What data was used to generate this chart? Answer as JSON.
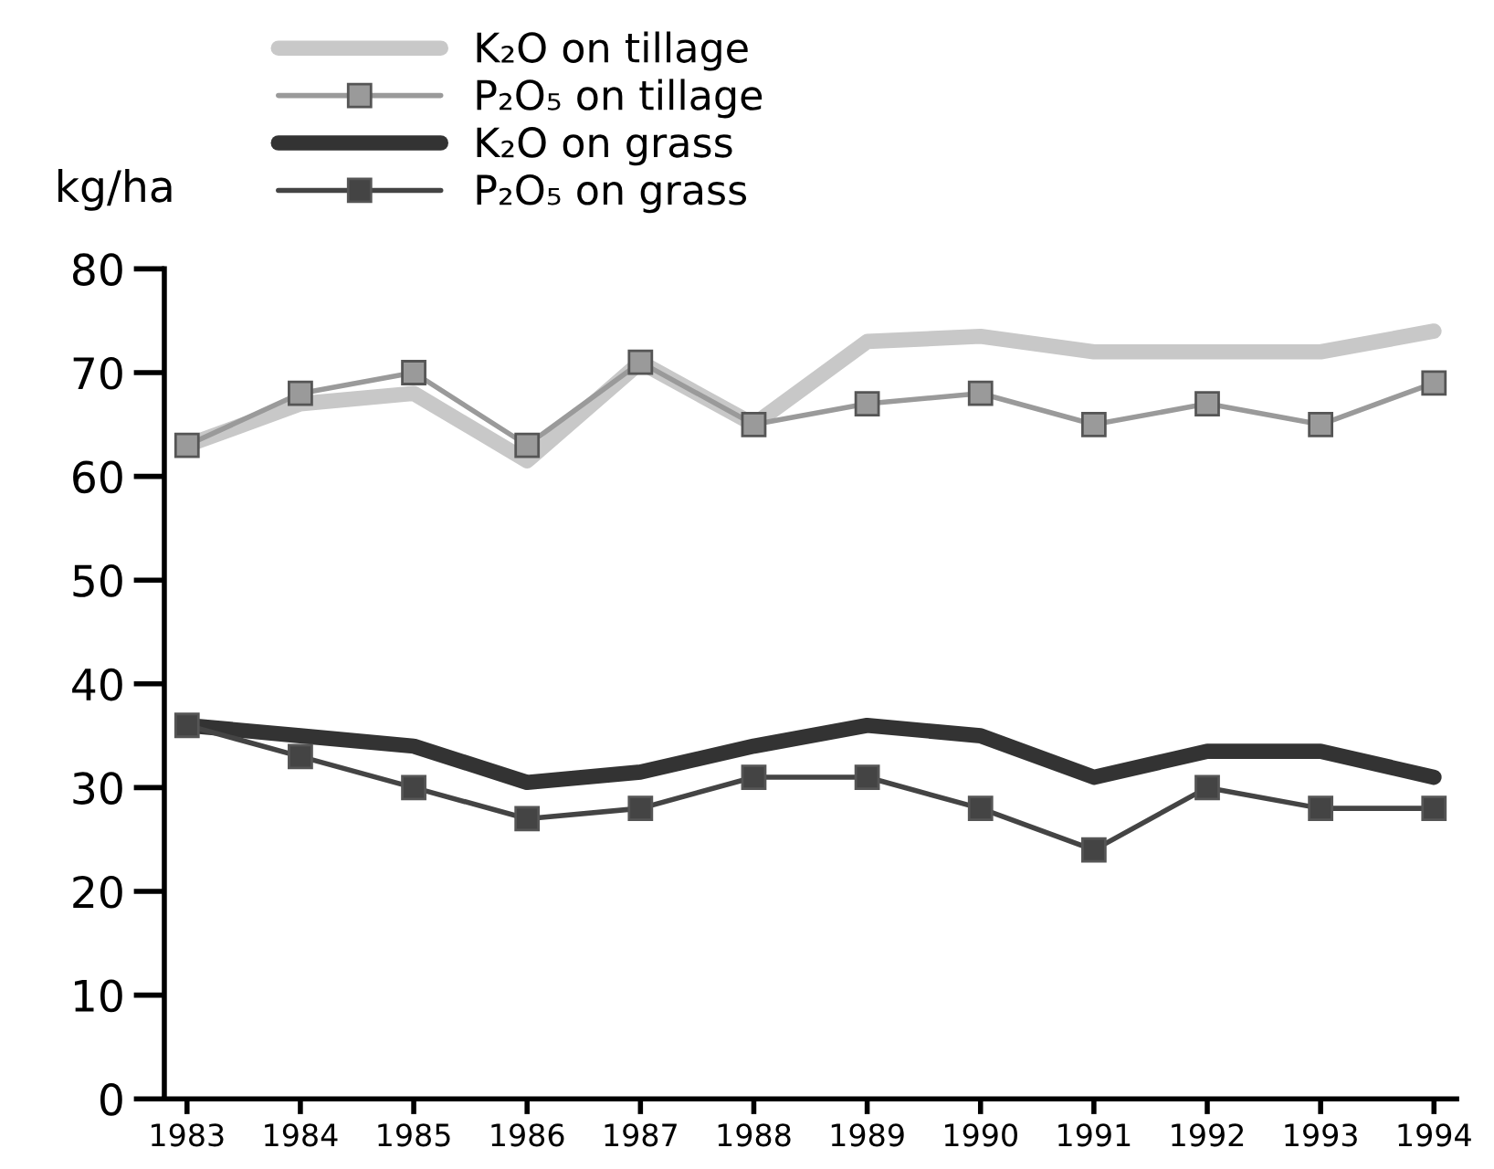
{
  "chart_data": {
    "type": "line",
    "ylabel": "kg/ha",
    "categories": [
      "1983",
      "1984",
      "1985",
      "1986",
      "1987",
      "1988",
      "1989",
      "1990",
      "1991",
      "1992",
      "1993",
      "1994"
    ],
    "series": [
      {
        "name": "K₂O on tillage",
        "color": "#c8c8c8",
        "marker": "none",
        "values": [
          63,
          67,
          68,
          61.5,
          71,
          65,
          73,
          73.5,
          72,
          72,
          72,
          74
        ]
      },
      {
        "name": "P₂O₅ on tillage",
        "color": "#9a9a9a",
        "marker": "square",
        "values": [
          63,
          68,
          70,
          63,
          71,
          65,
          67,
          68,
          65,
          67,
          65,
          69
        ]
      },
      {
        "name": "K₂O on grass",
        "color": "#333333",
        "marker": "none",
        "values": [
          36,
          35,
          34,
          30.5,
          31.5,
          34,
          36,
          35,
          31,
          33.5,
          33.5,
          31
        ]
      },
      {
        "name": "P₂O₅ on grass",
        "color": "#444444",
        "marker": "square",
        "values": [
          36,
          33,
          30,
          27,
          28,
          31,
          31,
          28,
          24,
          30,
          28,
          28
        ]
      }
    ],
    "ylim": [
      0,
      80
    ],
    "yticks": [
      0,
      10,
      20,
      30,
      40,
      50,
      60,
      70,
      80
    ],
    "grid": false,
    "legend": "top left"
  }
}
